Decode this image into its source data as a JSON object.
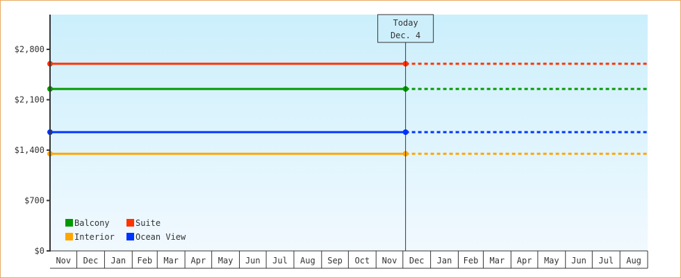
{
  "chart_data": {
    "type": "line",
    "ylim": [
      0,
      3283
    ],
    "yticks": [
      0,
      700,
      1400,
      2100,
      2800
    ],
    "ytick_labels": [
      "$0",
      "$700",
      "$1,400",
      "$2,100",
      "$2,800"
    ],
    "months": [
      "Nov",
      "Dec",
      "Jan",
      "Feb",
      "Mar",
      "Apr",
      "May",
      "Jun",
      "Jul",
      "Aug",
      "Sep",
      "Oct",
      "Nov",
      "Dec",
      "Jan",
      "Feb",
      "Mar",
      "Apr",
      "May",
      "Jun",
      "Jul",
      "Aug"
    ],
    "today": {
      "line1": "Today",
      "line2": "Dec. 4"
    },
    "legend_position": "bottom-left",
    "series": [
      {
        "name": "Balcony",
        "color": "#009900",
        "value": 2250
      },
      {
        "name": "Suite",
        "color": "#ff3300",
        "value": 2600
      },
      {
        "name": "Interior",
        "color": "#ffa500",
        "value": 1350
      },
      {
        "name": "Ocean View",
        "color": "#0033ff",
        "value": 1650
      }
    ],
    "note_style": "solid until today, dashed projection after"
  }
}
